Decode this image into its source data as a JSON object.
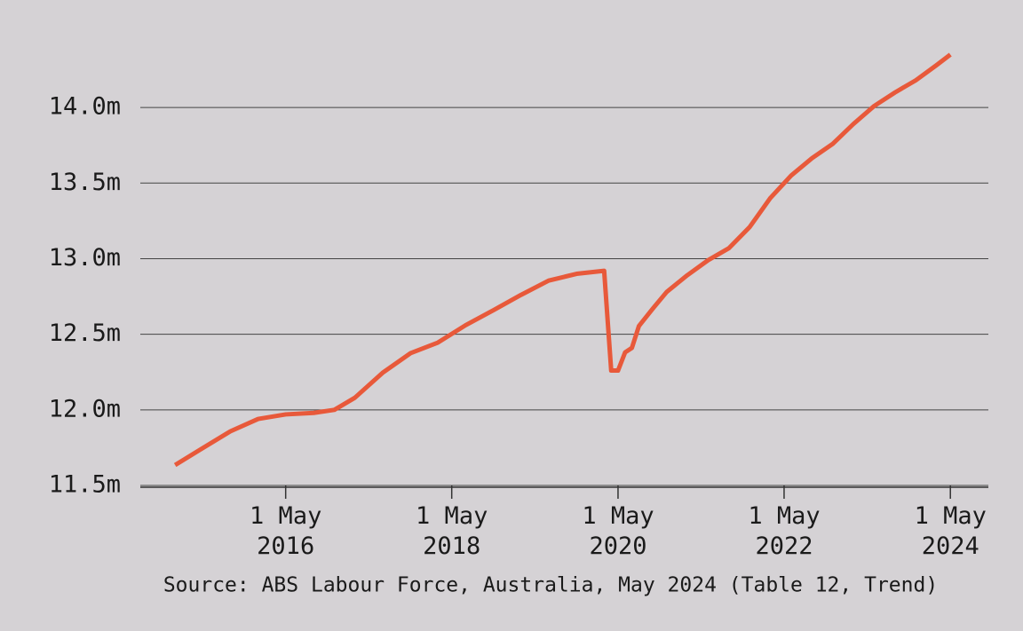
{
  "chart_data": {
    "type": "line",
    "source": "Source: ABS Labour Force, Australia, May 2024 (Table 12, Trend)",
    "x": [
      "2015-01-01",
      "2015-05-01",
      "2015-09-01",
      "2016-01-01",
      "2016-05-01",
      "2016-09-01",
      "2016-12-01",
      "2017-03-01",
      "2017-07-01",
      "2017-11-01",
      "2018-03-01",
      "2018-07-01",
      "2018-11-01",
      "2019-03-01",
      "2019-07-01",
      "2019-11-01",
      "2020-03-01",
      "2020-04-01",
      "2020-05-01",
      "2020-06-01",
      "2020-07-01",
      "2020-08-01",
      "2020-10-01",
      "2020-12-01",
      "2021-03-01",
      "2021-06-01",
      "2021-09-01",
      "2021-12-01",
      "2022-03-01",
      "2022-06-01",
      "2022-09-01",
      "2022-12-01",
      "2023-03-01",
      "2023-06-01",
      "2023-09-01",
      "2023-12-01",
      "2024-03-01",
      "2024-05-01"
    ],
    "series": [
      {
        "color": "#e8593a",
        "values": [
          11.635,
          11.746,
          11.858,
          11.94,
          11.97,
          11.98,
          12.0,
          12.08,
          12.245,
          12.375,
          12.445,
          12.56,
          12.66,
          12.76,
          12.855,
          12.9,
          12.92,
          12.26,
          12.26,
          12.38,
          12.41,
          12.555,
          12.67,
          12.78,
          12.89,
          12.99,
          13.07,
          13.21,
          13.4,
          13.55,
          13.665,
          13.76,
          13.89,
          14.01,
          14.1,
          14.18,
          14.28,
          14.35
        ]
      }
    ],
    "xlim": [
      "2014-08-01",
      "2024-10-15"
    ],
    "xticks": [
      {
        "value": "2016-05-01",
        "label": "1 May 2016"
      },
      {
        "value": "2018-05-01",
        "label": "1 May 2018"
      },
      {
        "value": "2020-05-01",
        "label": "1 May 2020"
      },
      {
        "value": "2022-05-01",
        "label": "1 May 2022"
      },
      {
        "value": "2024-05-01",
        "label": "1 May 2024"
      }
    ],
    "ylim": [
      11.5,
      14.4
    ],
    "yticks": [
      {
        "value": 11.5,
        "label": "11.5m"
      },
      {
        "value": 12,
        "label": "12.0m"
      },
      {
        "value": 12.5,
        "label": "12.5m"
      },
      {
        "value": 13,
        "label": "13.0m"
      },
      {
        "value": 13.5,
        "label": "13.5m"
      },
      {
        "value": 14,
        "label": "14.0m"
      }
    ],
    "grid": true
  }
}
